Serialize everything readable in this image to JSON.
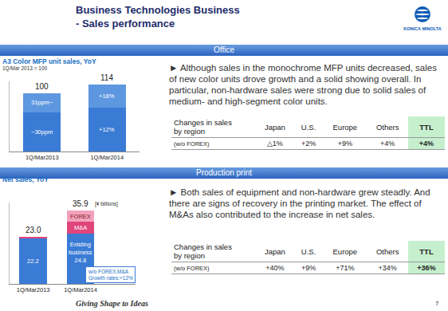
{
  "header": {
    "title": "Business Technologies Business",
    "subtitle": "- Sales performance",
    "logo": "KONICA MINOLTA"
  },
  "sections": [
    {
      "title": "Office",
      "text": "► Although sales in the monochrome MFP units decreased, sales of new color units drove growth and a solid showing overall. In particular, non-hardware sales were strong due to solid sales of medium- and high-segment color units.",
      "table": {
        "header": [
          "Changes in sales\nby region",
          "Japan",
          "U.S.",
          "Europe",
          "Others",
          "TTL"
        ],
        "row": [
          "(w/o FOREX)",
          "△1%",
          "+2%",
          "+9%",
          "+4%",
          "+4%"
        ]
      }
    },
    {
      "title": "Production print",
      "text": "► Both sales of equipment and non-hardware grew steadly. And there are signs of recovery in the printing market. The effect of M&As also contributed to the increase in net sales.",
      "table": {
        "header": [
          "Changes in sales\nby region",
          "Japan",
          "U.S.",
          "Europe",
          "Others",
          "TTL"
        ],
        "row": [
          "(w/o FOREX)",
          "+40%",
          "+9%",
          "+71%",
          "+34%",
          "+36%"
        ]
      }
    }
  ],
  "chart_data": [
    {
      "type": "bar",
      "stacked": true,
      "title": "A3 Color MFP unit sales, YoY",
      "subtitle": "1Q/Mar 2013 = 100",
      "categories": [
        "1Q/Mar2013",
        "1Q/Mar2014"
      ],
      "series": [
        {
          "color": "#3a7bd5",
          "values": [
            66.7,
            74.7
          ],
          "segment_labels": [
            "~30ppm",
            "+12%"
          ]
        },
        {
          "color": "#5d97e0",
          "values": [
            33.3,
            39.3
          ],
          "segment_labels": [
            "31ppm~",
            "+18%"
          ]
        }
      ],
      "totals": [
        100,
        114
      ],
      "ylim": [
        0,
        120
      ],
      "yticks": [],
      "tick_labels": "x",
      "grid": false
    },
    {
      "type": "bar",
      "stacked": true,
      "title": "Net sales, YoY",
      "unit": "[¥ billions]",
      "categories": [
        "1Q/Mar2013",
        "1Q/Mar2014"
      ],
      "series": [
        {
          "color": "#3a7bd5",
          "values": [
            22.2,
            24.8
          ],
          "segment_labels": [
            "22.2",
            "Existing\nbusiness\n24.8"
          ]
        },
        {
          "color": "#e0457b",
          "values": [
            0.8,
            5.7
          ],
          "segment_labels": [
            null,
            "M&A"
          ]
        },
        {
          "color": "#f2a2bd",
          "values": [
            0,
            5.4
          ],
          "segment_labels": [
            null,
            "FOREX"
          ]
        }
      ],
      "totals": [
        23.0,
        35.9
      ],
      "total_labels": [
        "23.0",
        "35.9"
      ],
      "callout": "w/o FOREX,M&A\nGrowth rates:+12%",
      "ylim": [
        0,
        40
      ],
      "yticks": [],
      "tick_labels": "x",
      "grid": false
    }
  ],
  "footer": {
    "tagline": "Giving Shape to Ideas",
    "page": "7"
  }
}
